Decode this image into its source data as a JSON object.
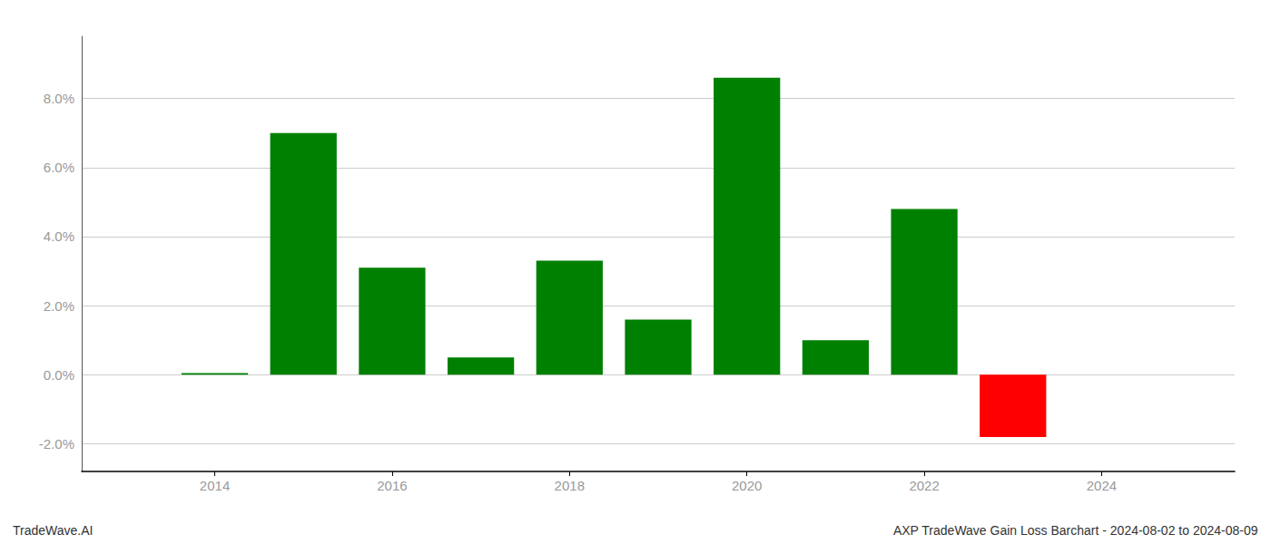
{
  "chart_data": {
    "type": "bar",
    "x": [
      2014,
      2015,
      2016,
      2017,
      2018,
      2019,
      2020,
      2021,
      2022,
      2023
    ],
    "values": [
      0.0005,
      0.07,
      0.031,
      0.005,
      0.033,
      0.016,
      0.086,
      0.01,
      0.048,
      -0.018
    ],
    "colors": [
      "#008000",
      "#008000",
      "#008000",
      "#008000",
      "#008000",
      "#008000",
      "#008000",
      "#008000",
      "#008000",
      "#ff0000"
    ],
    "xlim": [
      2012.5,
      2025.5
    ],
    "xticks": [
      2014,
      2016,
      2018,
      2020,
      2022,
      2024
    ],
    "ylim": [
      -0.028,
      0.098
    ],
    "yticks": [
      {
        "value": -0.02,
        "label": "-2.0%"
      },
      {
        "value": 0.0,
        "label": "0.0%"
      },
      {
        "value": 0.02,
        "label": "2.0%"
      },
      {
        "value": 0.04,
        "label": "4.0%"
      },
      {
        "value": 0.06,
        "label": "6.0%"
      },
      {
        "value": 0.08,
        "label": "8.0%"
      }
    ],
    "grid": true,
    "annotations": [
      "TradeWave.AI",
      "AXP TradeWave Gain Loss Barchart - 2024-08-02 to 2024-08-09"
    ]
  }
}
